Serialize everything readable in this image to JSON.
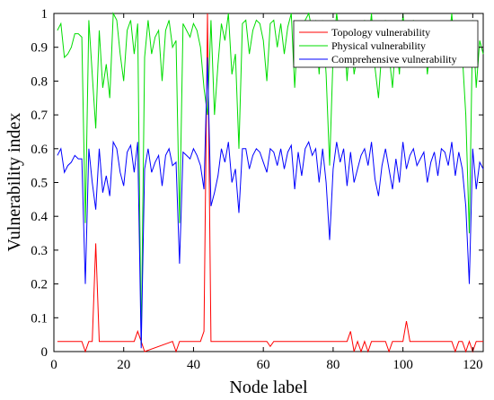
{
  "chart_data": {
    "type": "line",
    "xlabel": "Node label",
    "ylabel": "Vulnerability index",
    "xlim": [
      0,
      123
    ],
    "ylim": [
      0,
      1
    ],
    "xticks": [
      0,
      20,
      40,
      60,
      80,
      100,
      120
    ],
    "yticks": [
      0,
      0.1,
      0.2,
      0.3,
      0.4,
      0.5,
      0.6,
      0.7,
      0.8,
      0.9,
      1
    ],
    "grid": false,
    "legend_position": "top-right",
    "series": [
      {
        "name": "Topology vulnerability",
        "color": "#ff0000",
        "x": [
          1,
          8,
          9,
          10,
          11,
          12,
          13,
          14,
          23,
          24,
          25,
          26,
          34,
          35,
          36,
          42,
          43,
          44,
          45,
          61,
          62,
          63,
          84,
          85,
          86,
          87,
          88,
          89,
          90,
          91,
          95,
          96,
          97,
          100,
          101,
          102,
          103,
          114,
          115,
          116,
          117,
          118,
          119,
          120,
          121,
          123
        ],
        "y": [
          0.03,
          0.03,
          0.0,
          0.03,
          0.03,
          0.32,
          0.03,
          0.03,
          0.03,
          0.06,
          0.03,
          0.0,
          0.03,
          0.0,
          0.03,
          0.03,
          0.06,
          1.0,
          0.03,
          0.03,
          0.015,
          0.03,
          0.03,
          0.06,
          0.0,
          0.03,
          0.0,
          0.03,
          0.0,
          0.03,
          0.03,
          0.0,
          0.03,
          0.03,
          0.09,
          0.03,
          0.03,
          0.03,
          0.0,
          0.03,
          0.03,
          0.0,
          0.03,
          0.0,
          0.03,
          0.03
        ]
      },
      {
        "name": "Physical vulnerability",
        "color": "#00dd00",
        "x": [
          1,
          2,
          3,
          4,
          5,
          6,
          7,
          8,
          9,
          10,
          11,
          12,
          13,
          14,
          15,
          16,
          17,
          18,
          19,
          20,
          21,
          22,
          23,
          24,
          25,
          26,
          27,
          28,
          29,
          30,
          31,
          32,
          33,
          34,
          35,
          36,
          37,
          38,
          39,
          40,
          41,
          42,
          43,
          44,
          45,
          46,
          47,
          48,
          49,
          50,
          51,
          52,
          53,
          54,
          55,
          56,
          57,
          58,
          59,
          60,
          61,
          62,
          63,
          64,
          65,
          66,
          67,
          68,
          69,
          70,
          71,
          72,
          73,
          74,
          75,
          76,
          77,
          78,
          79,
          80,
          81,
          82,
          83,
          84,
          85,
          86,
          87,
          88,
          89,
          90,
          91,
          92,
          93,
          94,
          95,
          96,
          97,
          98,
          99,
          100,
          101,
          102,
          103,
          104,
          105,
          106,
          107,
          108,
          109,
          110,
          111,
          112,
          113,
          114,
          115,
          116,
          117,
          118,
          119,
          120,
          121,
          122,
          123
        ],
        "y": [
          0.95,
          0.97,
          0.87,
          0.88,
          0.9,
          0.94,
          0.94,
          0.93,
          0.38,
          0.98,
          0.82,
          0.66,
          0.95,
          0.78,
          0.85,
          0.75,
          1.0,
          0.98,
          0.88,
          0.8,
          0.95,
          0.98,
          0.88,
          0.97,
          0.02,
          0.87,
          0.98,
          0.88,
          0.93,
          0.95,
          0.8,
          0.95,
          0.98,
          0.9,
          0.92,
          0.38,
          0.97,
          0.95,
          0.93,
          0.97,
          0.95,
          0.9,
          0.78,
          0.7,
          0.98,
          0.7,
          0.85,
          0.97,
          0.92,
          1.0,
          0.82,
          0.88,
          0.6,
          0.97,
          0.98,
          0.88,
          0.95,
          0.98,
          0.97,
          0.92,
          0.8,
          0.97,
          0.98,
          0.9,
          0.97,
          0.88,
          0.96,
          1.0,
          0.78,
          0.97,
          0.85,
          0.98,
          1.0,
          0.95,
          0.98,
          0.82,
          0.98,
          0.82,
          0.55,
          0.88,
          1.0,
          0.92,
          0.97,
          0.8,
          0.96,
          0.82,
          0.88,
          0.95,
          0.98,
          0.9,
          1.0,
          0.84,
          0.75,
          0.9,
          0.98,
          0.88,
          0.78,
          0.93,
          0.82,
          1.0,
          0.88,
          0.95,
          0.98,
          0.9,
          0.93,
          0.96,
          0.82,
          0.92,
          0.96,
          0.85,
          0.97,
          0.96,
          0.9,
          1.0,
          0.85,
          0.96,
          0.88,
          0.7,
          0.35,
          0.98,
          0.78,
          0.92,
          0.88
        ]
      },
      {
        "name": "Comprehensive vulnerability",
        "color": "#0000ff",
        "x": [
          1,
          2,
          3,
          4,
          5,
          6,
          7,
          8,
          9,
          10,
          11,
          12,
          13,
          14,
          15,
          16,
          17,
          18,
          19,
          20,
          21,
          22,
          23,
          24,
          25,
          26,
          27,
          28,
          29,
          30,
          31,
          32,
          33,
          34,
          35,
          36,
          37,
          38,
          39,
          40,
          41,
          42,
          43,
          44,
          45,
          46,
          47,
          48,
          49,
          50,
          51,
          52,
          53,
          54,
          55,
          56,
          57,
          58,
          59,
          60,
          61,
          62,
          63,
          64,
          65,
          66,
          67,
          68,
          69,
          70,
          71,
          72,
          73,
          74,
          75,
          76,
          77,
          78,
          79,
          80,
          81,
          82,
          83,
          84,
          85,
          86,
          87,
          88,
          89,
          90,
          91,
          92,
          93,
          94,
          95,
          96,
          97,
          98,
          99,
          100,
          101,
          102,
          103,
          104,
          105,
          106,
          107,
          108,
          109,
          110,
          111,
          112,
          113,
          114,
          115,
          116,
          117,
          118,
          119,
          120,
          121,
          122,
          123
        ],
        "y": [
          0.58,
          0.6,
          0.53,
          0.55,
          0.56,
          0.58,
          0.57,
          0.57,
          0.2,
          0.6,
          0.5,
          0.42,
          0.6,
          0.47,
          0.52,
          0.46,
          0.62,
          0.6,
          0.53,
          0.49,
          0.59,
          0.61,
          0.53,
          0.62,
          0.01,
          0.54,
          0.6,
          0.53,
          0.56,
          0.58,
          0.49,
          0.58,
          0.6,
          0.55,
          0.56,
          0.26,
          0.59,
          0.58,
          0.57,
          0.6,
          0.58,
          0.55,
          0.48,
          0.87,
          0.43,
          0.47,
          0.52,
          0.6,
          0.56,
          0.62,
          0.5,
          0.54,
          0.41,
          0.6,
          0.6,
          0.54,
          0.58,
          0.6,
          0.59,
          0.56,
          0.53,
          0.6,
          0.59,
          0.55,
          0.6,
          0.54,
          0.59,
          0.61,
          0.48,
          0.59,
          0.52,
          0.6,
          0.62,
          0.58,
          0.6,
          0.5,
          0.6,
          0.5,
          0.33,
          0.54,
          0.62,
          0.56,
          0.6,
          0.49,
          0.59,
          0.5,
          0.54,
          0.58,
          0.6,
          0.55,
          0.62,
          0.51,
          0.46,
          0.55,
          0.6,
          0.54,
          0.48,
          0.57,
          0.5,
          0.62,
          0.54,
          0.58,
          0.6,
          0.55,
          0.57,
          0.59,
          0.5,
          0.56,
          0.59,
          0.52,
          0.6,
          0.59,
          0.55,
          0.62,
          0.52,
          0.59,
          0.54,
          0.43,
          0.2,
          0.6,
          0.48,
          0.56,
          0.54
        ]
      }
    ]
  }
}
